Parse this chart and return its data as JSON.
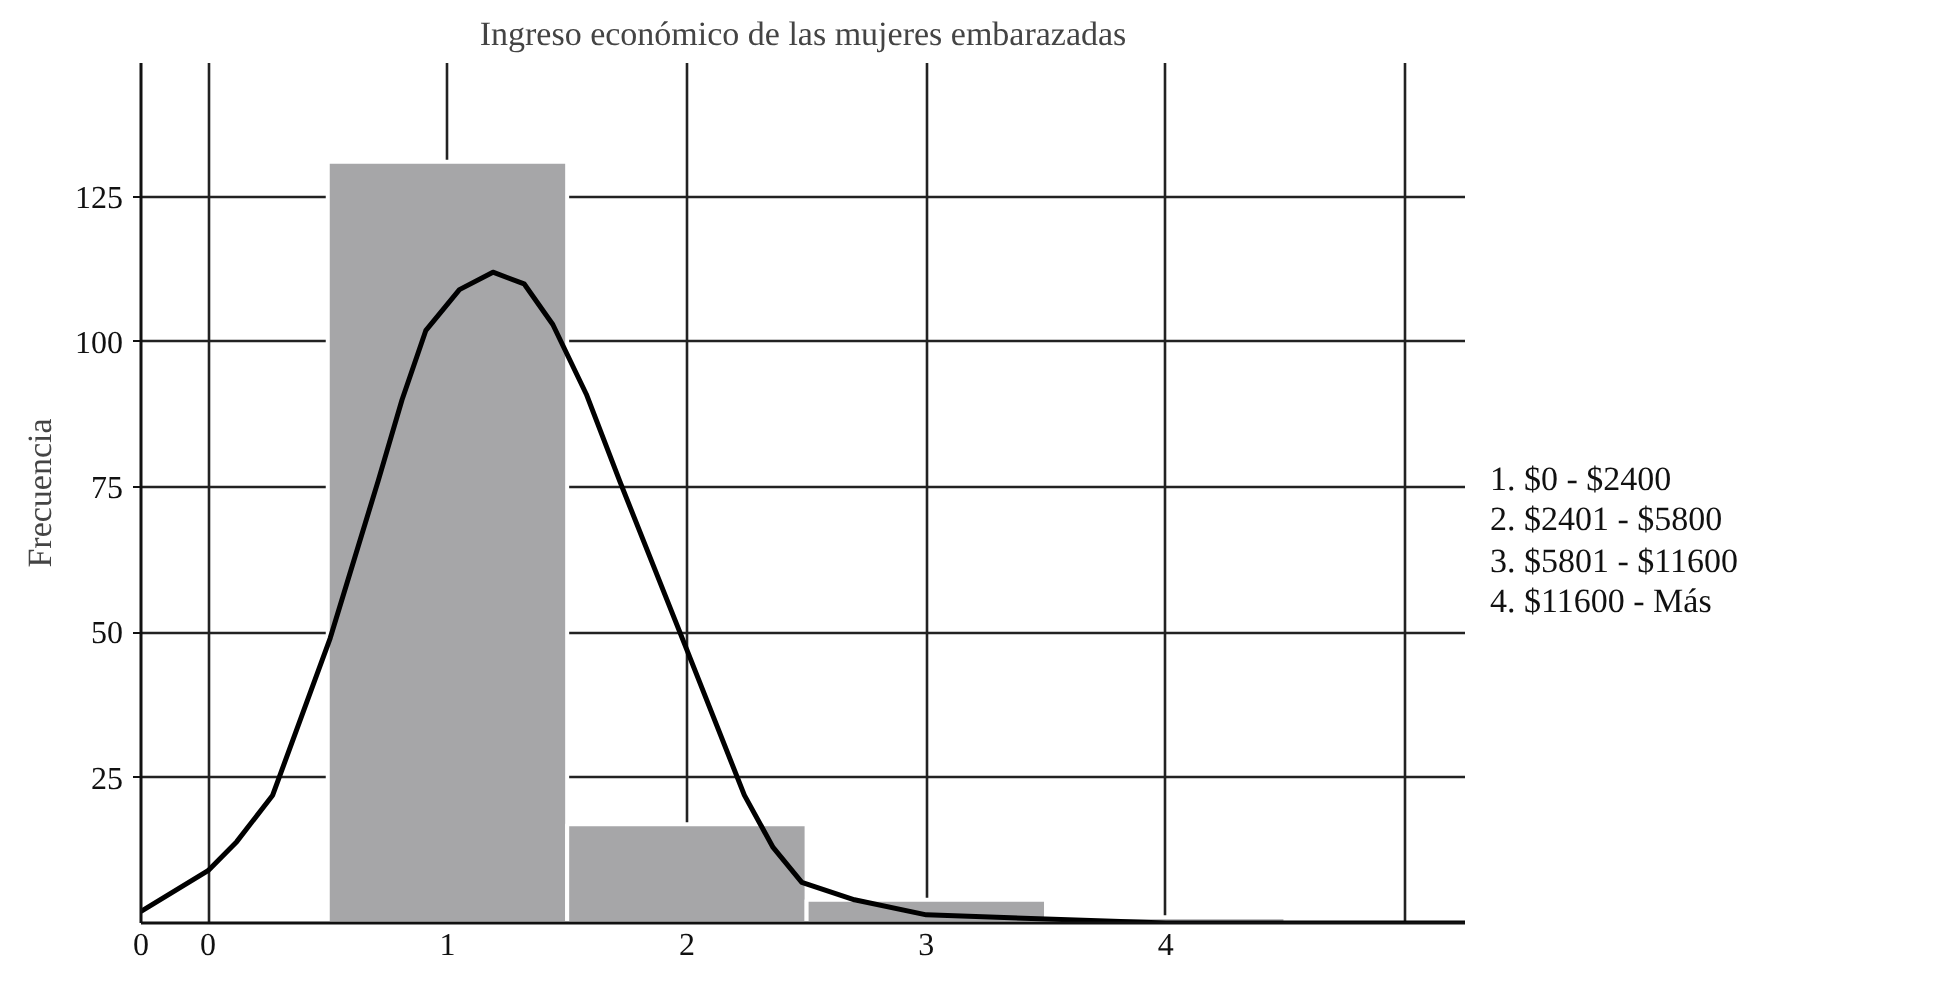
{
  "chart_data": {
    "type": "histogram",
    "title": "Ingreso económico de las mujeres embarazadas",
    "ylabel": "Frecuencia",
    "bins": [
      0.5,
      1.5,
      2.5,
      3.5,
      4.5
    ],
    "values": [
      131,
      17,
      4,
      1
    ],
    "color": "#a6a6a8",
    "series": [
      {
        "type": "line",
        "color": "#000000",
        "x": [
          -0.28,
          0,
          0.12,
          0.27,
          0.51,
          0.71,
          0.81,
          0.91,
          1.05,
          1.19,
          1.32,
          1.44,
          1.58,
          1.72,
          2.0,
          2.24,
          2.36,
          2.48,
          2.7,
          3.0,
          4.0,
          5.25
        ],
        "values": [
          2,
          9,
          14,
          22,
          49,
          76,
          90,
          102,
          109,
          112,
          110,
          103,
          91,
          76,
          47,
          22,
          13,
          7,
          4,
          1.4,
          0,
          0
        ]
      }
    ],
    "xlim": [
      -0.28,
      5.25
    ],
    "ylim": [
      0,
      148
    ],
    "xticks": [
      {
        "value": -0.28,
        "label": "0"
      },
      0,
      1,
      2,
      3,
      4,
      {
        "value": 5,
        "label": null
      }
    ],
    "yticks": [
      25,
      50,
      75,
      100,
      125
    ],
    "grid": true,
    "annotations": [
      "1. $0 - $2400",
      "2. $2401 - $5800",
      "3. $5801 - $11600",
      "4. $11600 - Más"
    ]
  }
}
